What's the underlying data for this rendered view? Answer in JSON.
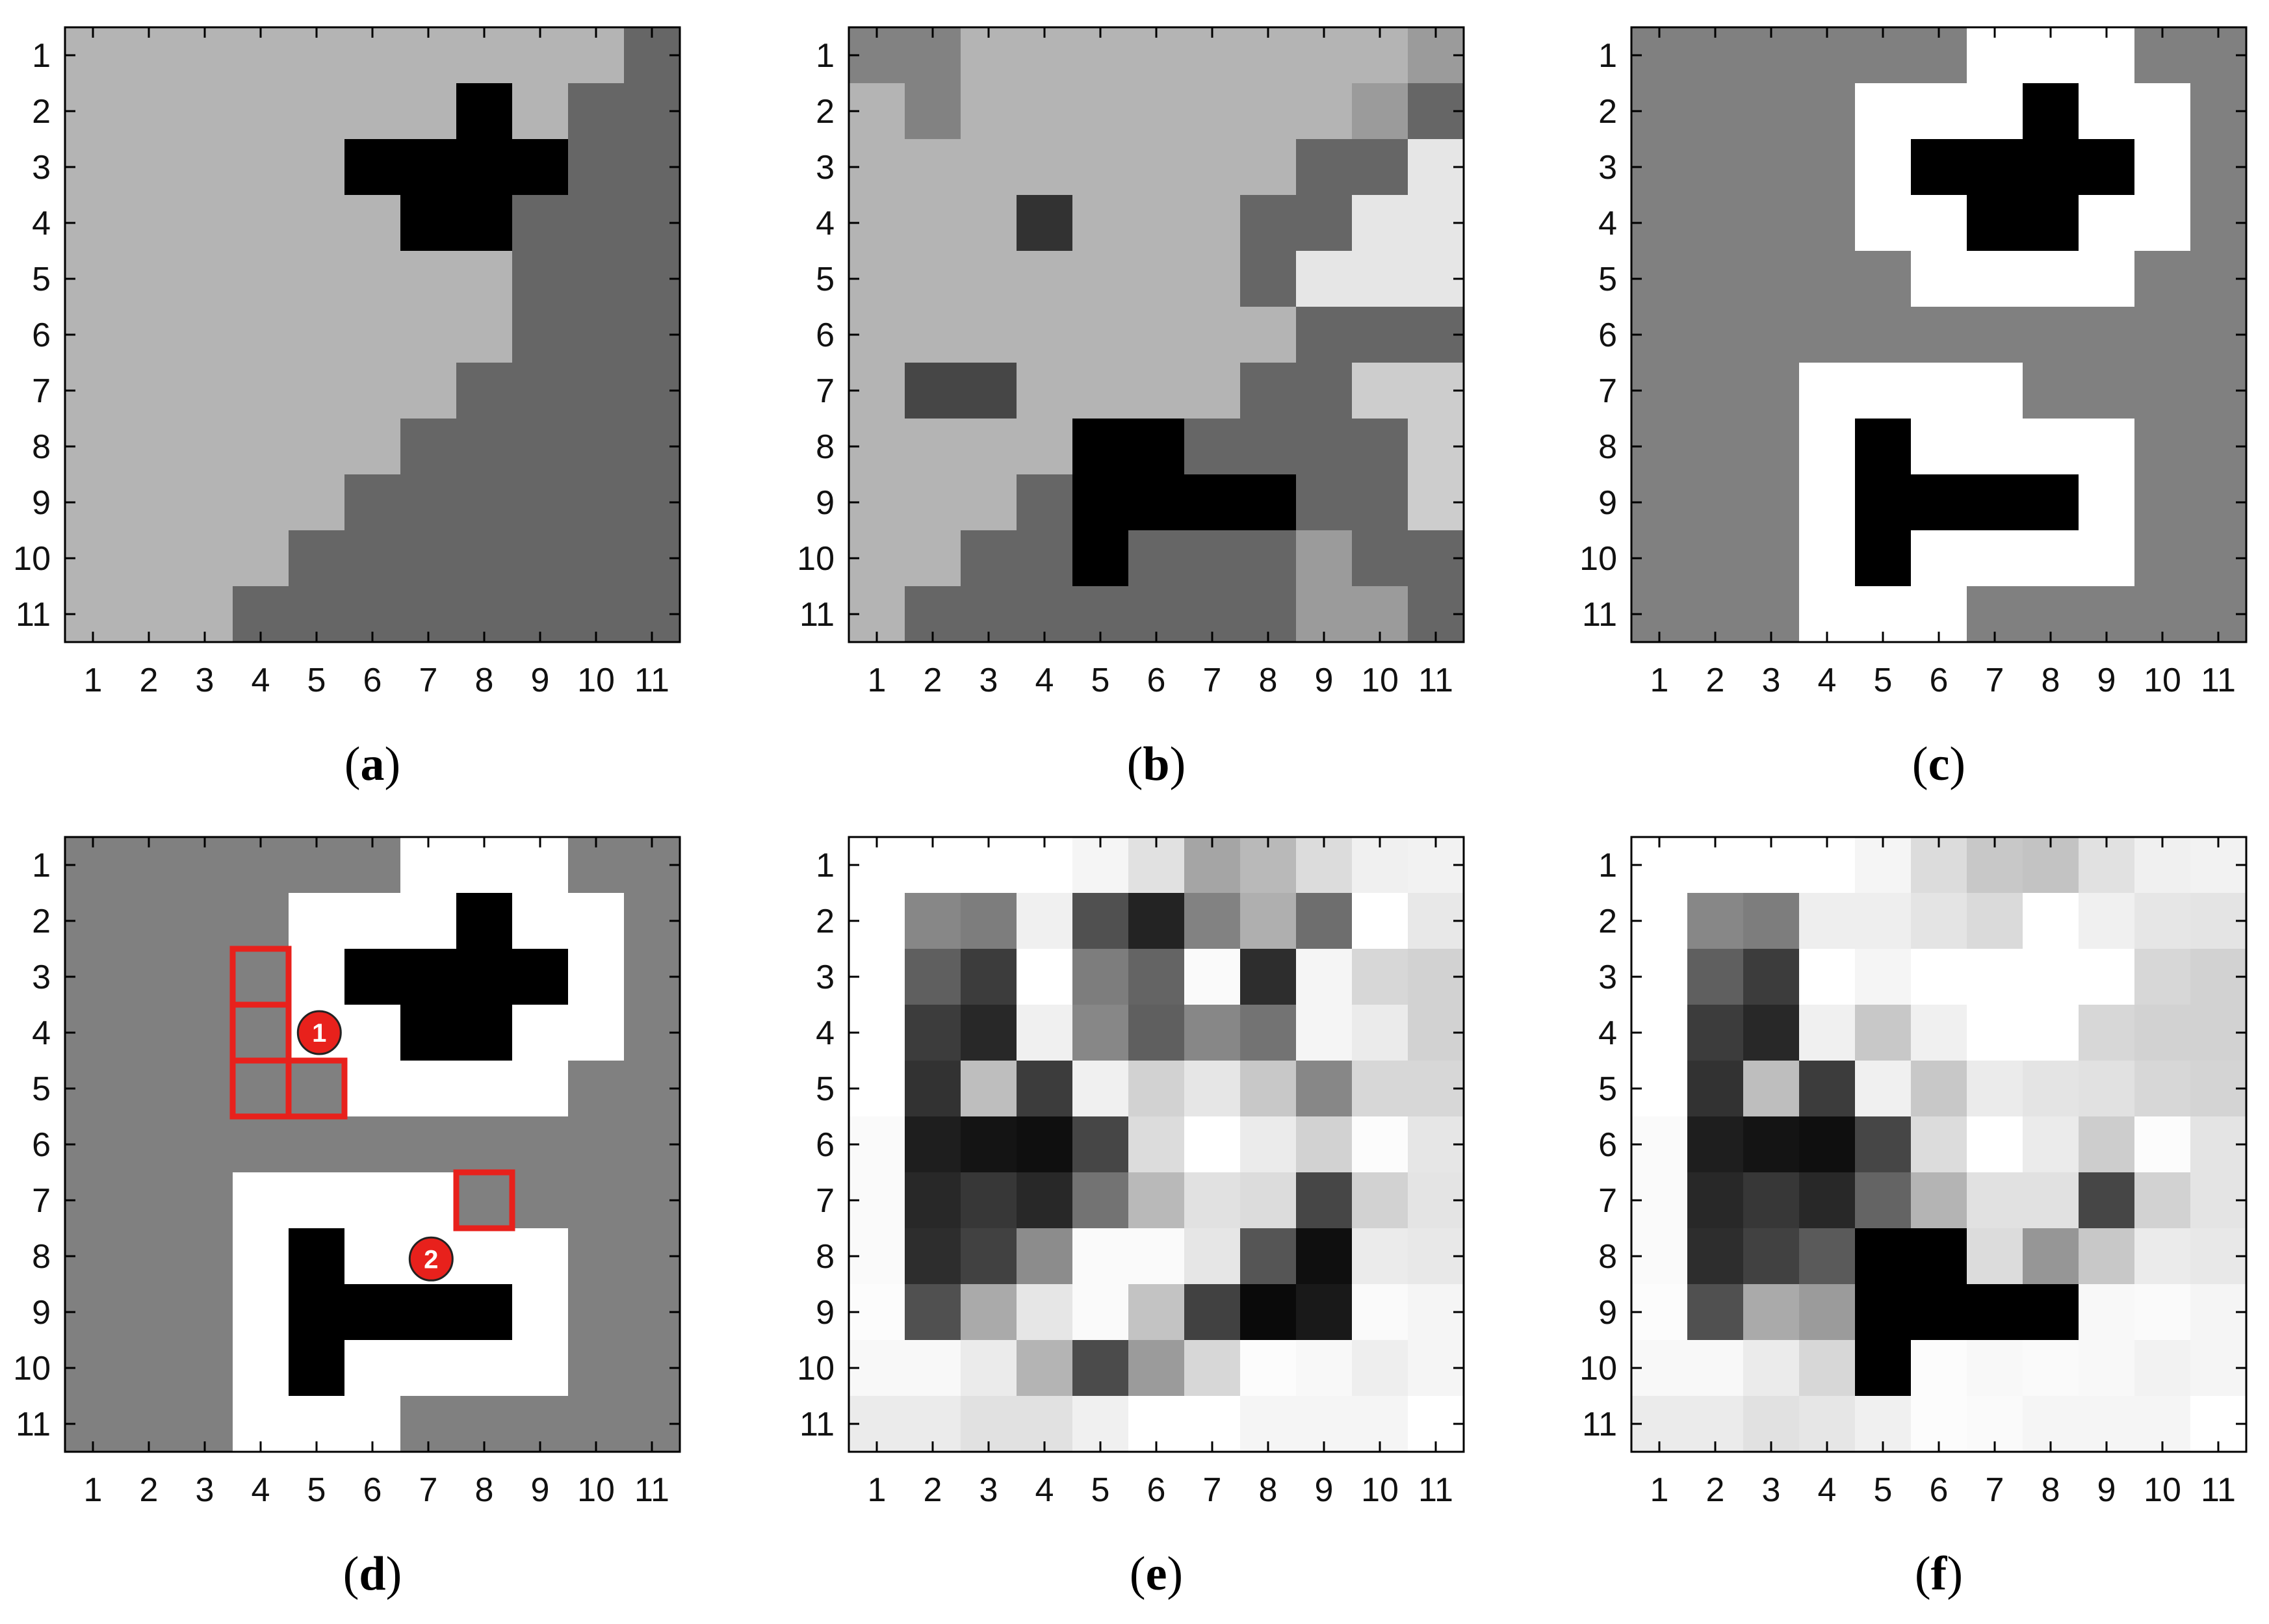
{
  "chart_data": [
    {
      "type": "heatmap",
      "panel_label": "a",
      "x_ticks": [
        "1",
        "2",
        "3",
        "4",
        "5",
        "6",
        "7",
        "8",
        "9",
        "10",
        "11"
      ],
      "y_ticks": [
        "1",
        "2",
        "3",
        "4",
        "5",
        "6",
        "7",
        "8",
        "9",
        "10",
        "11"
      ],
      "colormap": "gray (0 = black, 255 = white)",
      "values": [
        [
          180,
          180,
          180,
          180,
          180,
          180,
          180,
          180,
          180,
          180,
          102
        ],
        [
          180,
          180,
          180,
          180,
          180,
          180,
          180,
          0,
          180,
          102,
          102
        ],
        [
          180,
          180,
          180,
          180,
          180,
          0,
          0,
          0,
          0,
          102,
          102
        ],
        [
          180,
          180,
          180,
          180,
          180,
          180,
          0,
          0,
          102,
          102,
          102
        ],
        [
          180,
          180,
          180,
          180,
          180,
          180,
          180,
          180,
          102,
          102,
          102
        ],
        [
          180,
          180,
          180,
          180,
          180,
          180,
          180,
          180,
          102,
          102,
          102
        ],
        [
          180,
          180,
          180,
          180,
          180,
          180,
          180,
          102,
          102,
          102,
          102
        ],
        [
          180,
          180,
          180,
          180,
          180,
          180,
          102,
          102,
          102,
          102,
          102
        ],
        [
          180,
          180,
          180,
          180,
          180,
          102,
          102,
          102,
          102,
          102,
          102
        ],
        [
          180,
          180,
          180,
          180,
          102,
          102,
          102,
          102,
          102,
          102,
          102
        ],
        [
          180,
          180,
          180,
          102,
          102,
          102,
          102,
          102,
          102,
          102,
          102
        ]
      ]
    },
    {
      "type": "heatmap",
      "panel_label": "b",
      "x_ticks": [
        "1",
        "2",
        "3",
        "4",
        "5",
        "6",
        "7",
        "8",
        "9",
        "10",
        "11"
      ],
      "y_ticks": [
        "1",
        "2",
        "3",
        "4",
        "5",
        "6",
        "7",
        "8",
        "9",
        "10",
        "11"
      ],
      "colormap": "gray (0 = black, 255 = white)",
      "values": [
        [
          130,
          130,
          180,
          180,
          180,
          180,
          180,
          180,
          180,
          180,
          155
        ],
        [
          180,
          130,
          180,
          180,
          180,
          180,
          180,
          180,
          180,
          155,
          102
        ],
        [
          180,
          180,
          180,
          180,
          180,
          180,
          180,
          180,
          102,
          102,
          230
        ],
        [
          180,
          180,
          180,
          50,
          180,
          180,
          180,
          102,
          102,
          230,
          230
        ],
        [
          180,
          180,
          180,
          180,
          180,
          180,
          180,
          102,
          230,
          230,
          230
        ],
        [
          180,
          180,
          180,
          180,
          180,
          180,
          180,
          180,
          102,
          102,
          102
        ],
        [
          180,
          70,
          70,
          180,
          180,
          180,
          180,
          102,
          102,
          205,
          205
        ],
        [
          180,
          180,
          180,
          180,
          0,
          0,
          102,
          102,
          102,
          102,
          205
        ],
        [
          180,
          180,
          180,
          102,
          0,
          0,
          0,
          0,
          102,
          102,
          205
        ],
        [
          180,
          180,
          102,
          102,
          0,
          102,
          102,
          102,
          155,
          102,
          102
        ],
        [
          180,
          102,
          102,
          102,
          102,
          102,
          102,
          102,
          155,
          155,
          102
        ]
      ]
    },
    {
      "type": "heatmap",
      "panel_label": "c",
      "x_ticks": [
        "1",
        "2",
        "3",
        "4",
        "5",
        "6",
        "7",
        "8",
        "9",
        "10",
        "11"
      ],
      "y_ticks": [
        "1",
        "2",
        "3",
        "4",
        "5",
        "6",
        "7",
        "8",
        "9",
        "10",
        "11"
      ],
      "colormap": "gray (0 = black, 255 = white)",
      "values": [
        [
          128,
          128,
          128,
          128,
          128,
          128,
          255,
          255,
          255,
          128,
          128
        ],
        [
          128,
          128,
          128,
          128,
          255,
          255,
          255,
          0,
          255,
          255,
          128
        ],
        [
          128,
          128,
          128,
          128,
          255,
          0,
          0,
          0,
          0,
          255,
          128
        ],
        [
          128,
          128,
          128,
          128,
          255,
          255,
          0,
          0,
          255,
          255,
          128
        ],
        [
          128,
          128,
          128,
          128,
          128,
          255,
          255,
          255,
          255,
          128,
          128
        ],
        [
          128,
          128,
          128,
          128,
          128,
          128,
          128,
          128,
          128,
          128,
          128
        ],
        [
          128,
          128,
          128,
          255,
          255,
          255,
          255,
          128,
          128,
          128,
          128
        ],
        [
          128,
          128,
          128,
          255,
          0,
          255,
          255,
          255,
          255,
          128,
          128
        ],
        [
          128,
          128,
          128,
          255,
          0,
          0,
          0,
          0,
          255,
          128,
          128
        ],
        [
          128,
          128,
          128,
          255,
          0,
          255,
          255,
          255,
          255,
          128,
          128
        ],
        [
          128,
          128,
          128,
          255,
          255,
          255,
          128,
          128,
          128,
          128,
          128
        ]
      ]
    },
    {
      "type": "heatmap",
      "panel_label": "d",
      "x_ticks": [
        "1",
        "2",
        "3",
        "4",
        "5",
        "6",
        "7",
        "8",
        "9",
        "10",
        "11"
      ],
      "y_ticks": [
        "1",
        "2",
        "3",
        "4",
        "5",
        "6",
        "7",
        "8",
        "9",
        "10",
        "11"
      ],
      "colormap": "gray (0 = black, 255 = white)",
      "values": [
        [
          128,
          128,
          128,
          128,
          128,
          128,
          255,
          255,
          255,
          128,
          128
        ],
        [
          128,
          128,
          128,
          128,
          255,
          255,
          255,
          0,
          255,
          255,
          128
        ],
        [
          128,
          128,
          128,
          128,
          255,
          0,
          0,
          0,
          0,
          255,
          128
        ],
        [
          128,
          128,
          128,
          128,
          255,
          255,
          0,
          0,
          255,
          255,
          128
        ],
        [
          128,
          128,
          128,
          128,
          128,
          255,
          255,
          255,
          255,
          128,
          128
        ],
        [
          128,
          128,
          128,
          128,
          128,
          128,
          128,
          128,
          128,
          128,
          128
        ],
        [
          128,
          128,
          128,
          255,
          255,
          255,
          255,
          128,
          128,
          128,
          128
        ],
        [
          128,
          128,
          128,
          255,
          0,
          255,
          255,
          255,
          255,
          128,
          128
        ],
        [
          128,
          128,
          128,
          255,
          0,
          0,
          0,
          0,
          255,
          128,
          128
        ],
        [
          128,
          128,
          128,
          255,
          0,
          255,
          255,
          255,
          255,
          128,
          128
        ],
        [
          128,
          128,
          128,
          255,
          255,
          255,
          128,
          128,
          128,
          128,
          128
        ]
      ],
      "highlighted_cells": [
        {
          "col": 4,
          "row": 3
        },
        {
          "col": 4,
          "row": 4
        },
        {
          "col": 4,
          "row": 5
        },
        {
          "col": 5,
          "row": 5
        },
        {
          "col": 8,
          "row": 7
        }
      ],
      "highlight_color": "#e8211c",
      "markers": [
        {
          "text": "1",
          "x": 5.05,
          "y": 4.0
        },
        {
          "text": "2",
          "x": 7.05,
          "y": 8.05
        }
      ]
    },
    {
      "type": "heatmap",
      "panel_label": "e",
      "x_ticks": [
        "1",
        "2",
        "3",
        "4",
        "5",
        "6",
        "7",
        "8",
        "9",
        "10",
        "11"
      ],
      "y_ticks": [
        "1",
        "2",
        "3",
        "4",
        "5",
        "6",
        "7",
        "8",
        "9",
        "10",
        "11"
      ],
      "colormap": "gray (0 = black, 255 = white)",
      "values": [
        [
          255,
          255,
          255,
          255,
          245,
          225,
          165,
          185,
          220,
          240,
          242
        ],
        [
          255,
          135,
          125,
          240,
          80,
          35,
          130,
          175,
          110,
          255,
          232
        ],
        [
          255,
          95,
          60,
          255,
          125,
          100,
          250,
          45,
          245,
          215,
          210
        ],
        [
          255,
          60,
          40,
          240,
          135,
          95,
          135,
          115,
          245,
          235,
          210
        ],
        [
          255,
          50,
          190,
          60,
          240,
          210,
          230,
          200,
          135,
          215,
          215
        ],
        [
          250,
          30,
          20,
          15,
          70,
          220,
          255,
          235,
          210,
          252,
          230
        ],
        [
          250,
          40,
          55,
          40,
          115,
          185,
          225,
          220,
          70,
          210,
          228
        ],
        [
          250,
          45,
          65,
          140,
          250,
          250,
          230,
          85,
          15,
          235,
          232
        ],
        [
          252,
          80,
          170,
          230,
          250,
          195,
          65,
          10,
          25,
          250,
          245
        ],
        [
          248,
          248,
          235,
          180,
          75,
          155,
          215,
          252,
          248,
          238,
          245
        ],
        [
          235,
          235,
          225,
          225,
          240,
          255,
          255,
          245,
          245,
          245,
          255
        ]
      ]
    },
    {
      "type": "heatmap",
      "panel_label": "f",
      "x_ticks": [
        "1",
        "2",
        "3",
        "4",
        "5",
        "6",
        "7",
        "8",
        "9",
        "10",
        "11"
      ],
      "y_ticks": [
        "1",
        "2",
        "3",
        "4",
        "5",
        "6",
        "7",
        "8",
        "9",
        "10",
        "11"
      ],
      "colormap": "gray (0 = black, 255 = white)",
      "values": [
        [
          255,
          255,
          255,
          255,
          245,
          220,
          200,
          195,
          225,
          240,
          242
        ],
        [
          255,
          135,
          125,
          238,
          238,
          228,
          218,
          255,
          240,
          230,
          228
        ],
        [
          255,
          95,
          60,
          255,
          245,
          255,
          255,
          255,
          255,
          215,
          210
        ],
        [
          255,
          60,
          40,
          240,
          200,
          240,
          255,
          255,
          215,
          210,
          210
        ],
        [
          255,
          50,
          190,
          60,
          240,
          200,
          235,
          228,
          225,
          215,
          212
        ],
        [
          250,
          30,
          20,
          15,
          70,
          220,
          255,
          235,
          205,
          252,
          228
        ],
        [
          250,
          40,
          55,
          40,
          100,
          180,
          225,
          225,
          70,
          210,
          228
        ],
        [
          250,
          45,
          65,
          90,
          0,
          0,
          220,
          150,
          200,
          235,
          232
        ],
        [
          252,
          80,
          170,
          155,
          0,
          0,
          0,
          0,
          248,
          250,
          245
        ],
        [
          248,
          248,
          235,
          215,
          0,
          252,
          248,
          250,
          248,
          242,
          245
        ],
        [
          235,
          235,
          225,
          230,
          240,
          252,
          250,
          245,
          245,
          245,
          255
        ]
      ]
    }
  ]
}
